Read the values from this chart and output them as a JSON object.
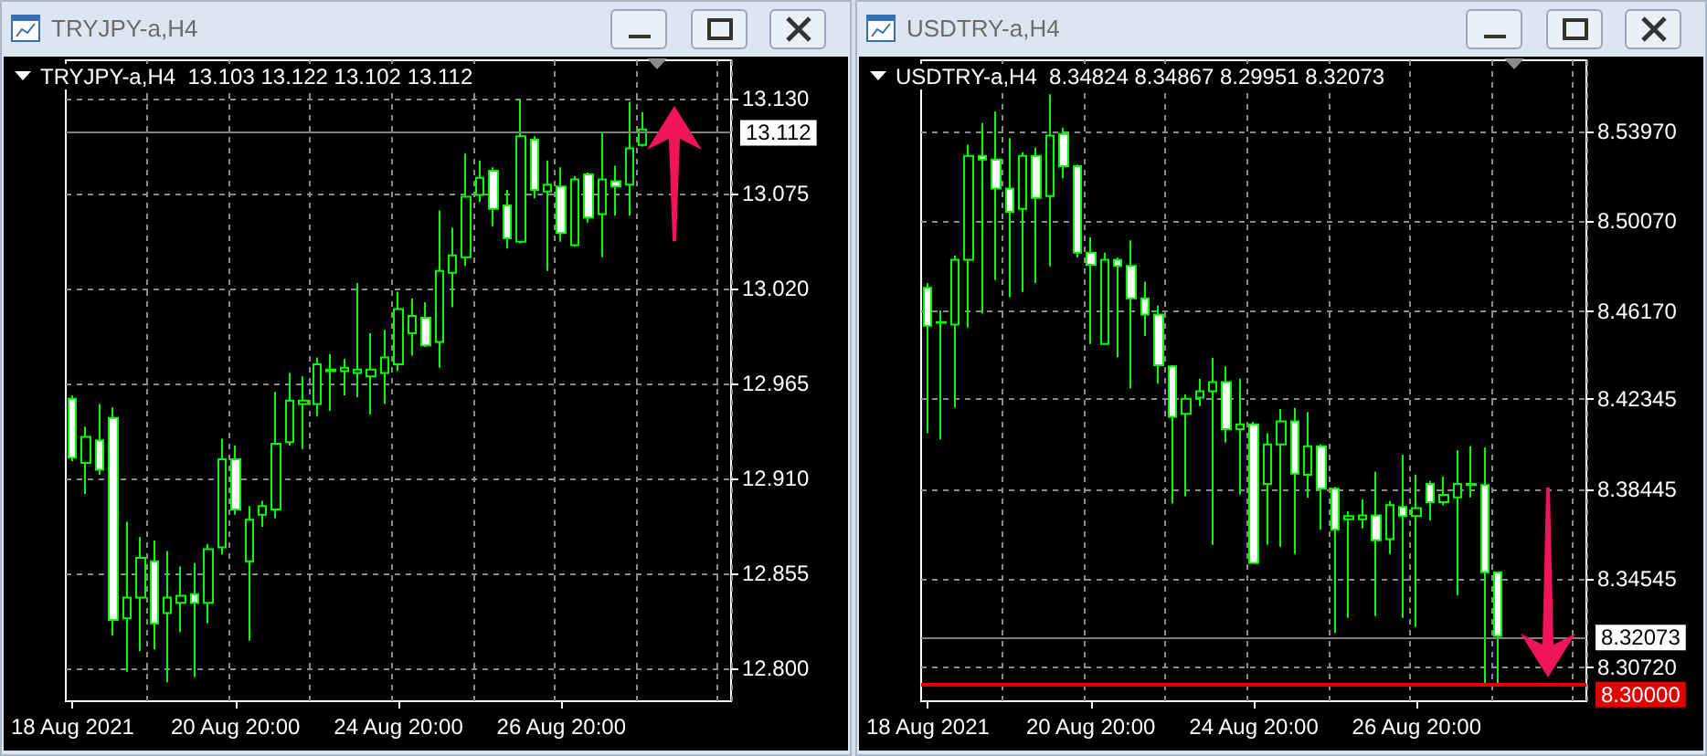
{
  "chart_data": [
    {
      "type": "candlestick",
      "title": "TRYJPY-a,H4",
      "subtitle": "TRYJPY-a,H4  13.103 13.122 13.102 13.112",
      "categories": [
        "18 Aug 2021",
        null,
        null,
        null,
        null,
        null,
        null,
        null,
        null,
        null,
        null,
        null,
        "20 Aug 20:00",
        null,
        null,
        null,
        null,
        null,
        null,
        null,
        null,
        null,
        null,
        null,
        "24 Aug 20:00",
        null,
        null,
        null,
        null,
        null,
        null,
        null,
        null,
        null,
        null,
        null,
        "26 Aug 20:00",
        null,
        null,
        null,
        null,
        null,
        null,
        null,
        null,
        null,
        null,
        null,
        null
      ],
      "ohlc": [
        [
          12.956,
          12.958,
          12.92,
          12.922
        ],
        [
          12.919,
          12.94,
          12.901,
          12.934
        ],
        [
          12.932,
          12.953,
          12.912,
          12.915
        ],
        [
          12.945,
          12.951,
          12.819,
          12.828
        ],
        [
          12.829,
          12.885,
          12.798,
          12.841
        ],
        [
          12.841,
          12.876,
          12.81,
          12.864
        ],
        [
          12.862,
          12.874,
          12.811,
          12.826
        ],
        [
          12.832,
          12.868,
          12.792,
          12.841
        ],
        [
          12.838,
          12.859,
          12.821,
          12.842
        ],
        [
          12.843,
          12.861,
          12.795,
          12.838
        ],
        [
          12.838,
          12.872,
          12.826,
          12.869
        ],
        [
          12.87,
          12.933,
          12.866,
          12.921
        ],
        [
          12.921,
          12.929,
          12.889,
          12.892
        ],
        [
          12.862,
          12.894,
          12.816,
          12.886
        ],
        [
          12.889,
          12.897,
          12.882,
          12.894
        ],
        [
          12.892,
          12.96,
          12.887,
          12.93
        ],
        [
          12.931,
          12.971,
          12.929,
          12.955
        ],
        [
          12.953,
          12.969,
          12.927,
          12.955
        ],
        [
          12.953,
          12.98,
          12.946,
          12.976
        ],
        [
          12.972,
          12.982,
          12.949,
          12.973
        ],
        [
          12.972,
          12.979,
          12.958,
          12.974
        ],
        [
          12.971,
          13.023,
          12.957,
          12.973
        ],
        [
          12.969,
          12.994,
          12.947,
          12.973
        ],
        [
          12.971,
          12.996,
          12.953,
          12.98
        ],
        [
          12.976,
          13.018,
          12.972,
          13.008
        ],
        [
          12.994,
          13.014,
          12.981,
          13.004
        ],
        [
          13.003,
          13.012,
          12.986,
          12.987
        ],
        [
          12.989,
          13.065,
          12.974,
          13.03
        ],
        [
          13.029,
          13.055,
          13.009,
          13.039
        ],
        [
          13.038,
          13.098,
          13.033,
          13.073
        ],
        [
          13.074,
          13.094,
          13.07,
          13.084
        ],
        [
          13.088,
          13.09,
          13.056,
          13.066
        ],
        [
          13.068,
          13.077,
          13.043,
          13.049
        ],
        [
          13.047,
          13.129,
          13.046,
          13.108
        ],
        [
          13.106,
          13.108,
          13.072,
          13.077
        ],
        [
          13.076,
          13.094,
          13.03,
          13.08
        ],
        [
          13.079,
          13.09,
          13.047,
          13.052
        ],
        [
          13.045,
          13.085,
          13.044,
          13.083
        ],
        [
          13.086,
          13.087,
          13.058,
          13.061
        ],
        [
          13.063,
          13.11,
          13.038,
          13.083
        ],
        [
          13.082,
          13.091,
          13.062,
          13.079
        ],
        [
          13.08,
          13.128,
          13.062,
          13.101
        ],
        [
          13.103,
          13.122,
          13.102,
          13.112
        ],
        null,
        null,
        null,
        null,
        null,
        null
      ],
      "ylim": [
        12.781,
        13.152
      ],
      "yticks": [
        {
          "value": 12.8,
          "label": "12.800"
        },
        {
          "value": 12.855,
          "label": "12.855"
        },
        {
          "value": 12.91,
          "label": "12.910"
        },
        {
          "value": 12.965,
          "label": "12.965"
        },
        {
          "value": 13.02,
          "label": "13.020"
        },
        {
          "value": 13.075,
          "label": "13.075"
        },
        {
          "value": 13.13,
          "label": "13.130"
        }
      ],
      "grid": true,
      "ref_lines": [
        {
          "axis": "y",
          "value": 13.112,
          "label": "13.112",
          "color": "#808080"
        }
      ]
    },
    {
      "type": "candlestick",
      "title": "USDTRY-a,H4",
      "subtitle": "USDTRY-a,H4  8.34824 8.34867 8.29951 8.32073",
      "categories": [
        "18 Aug 2021",
        null,
        null,
        null,
        null,
        null,
        null,
        null,
        null,
        null,
        null,
        null,
        "20 Aug 20:00",
        null,
        null,
        null,
        null,
        null,
        null,
        null,
        null,
        null,
        null,
        null,
        "24 Aug 20:00",
        null,
        null,
        null,
        null,
        null,
        null,
        null,
        null,
        null,
        null,
        null,
        "26 Aug 20:00",
        null,
        null,
        null,
        null,
        null,
        null,
        null,
        null,
        null,
        null,
        null,
        null
      ],
      "ohlc": [
        [
          8.4718,
          8.4739,
          8.4087,
          8.4554
        ],
        [
          8.4567,
          8.462,
          8.406,
          8.457
        ],
        [
          8.4559,
          8.4858,
          8.4198,
          8.484
        ],
        [
          8.484,
          8.5339,
          8.4546,
          8.5291
        ],
        [
          8.5291,
          8.5434,
          8.4607,
          8.5275
        ],
        [
          8.5275,
          8.5484,
          8.4752,
          8.5149
        ],
        [
          8.5149,
          8.5368,
          8.4678,
          8.5048
        ],
        [
          8.5061,
          8.5307,
          8.47,
          8.5291
        ],
        [
          8.5291,
          8.5328,
          8.4739,
          8.5109
        ],
        [
          8.5117,
          8.5558,
          8.4811,
          8.5379
        ],
        [
          8.5386,
          8.5413,
          8.5194,
          8.5246
        ],
        [
          8.5246,
          8.5254,
          8.485,
          8.4871
        ],
        [
          8.4871,
          8.4937,
          8.4475,
          8.4818
        ],
        [
          8.4475,
          8.4871,
          8.4475,
          8.484
        ],
        [
          8.484,
          8.485,
          8.4417,
          8.4813
        ],
        [
          8.4813,
          8.4924,
          8.4282,
          8.4673
        ],
        [
          8.4673,
          8.4744,
          8.4509,
          8.4602
        ],
        [
          8.4602,
          8.4641,
          8.4303,
          8.4382
        ],
        [
          8.4377,
          8.4382,
          8.3783,
          8.4158
        ],
        [
          8.4171,
          8.4256,
          8.3814,
          8.4237
        ],
        [
          8.4242,
          8.4324,
          8.4205,
          8.4269
        ],
        [
          8.4269,
          8.4414,
          8.3603,
          8.4309
        ],
        [
          8.4309,
          8.4377,
          8.4047,
          8.4105
        ],
        [
          8.4105,
          8.4324,
          8.3822,
          8.4126
        ],
        [
          8.4126,
          8.4137,
          8.3524,
          8.3524
        ],
        [
          8.3867,
          8.4087,
          8.3603,
          8.4039
        ],
        [
          8.4039,
          8.4192,
          8.3595,
          8.4139
        ],
        [
          8.4139,
          8.4197,
          8.3563,
          8.3912
        ],
        [
          8.3907,
          8.4179,
          8.3807,
          8.4031
        ],
        [
          8.4031,
          8.4039,
          8.3669,
          8.3846
        ],
        [
          8.3846,
          8.3854,
          8.322,
          8.3669
        ],
        [
          8.3714,
          8.3748,
          8.3286,
          8.3727
        ],
        [
          8.3714,
          8.3801,
          8.3674,
          8.373
        ],
        [
          8.373,
          8.392,
          8.3294,
          8.3622
        ],
        [
          8.3627,
          8.3793,
          8.3563,
          8.3775
        ],
        [
          8.3767,
          8.3994,
          8.3286,
          8.3727
        ],
        [
          8.3727,
          8.3907,
          8.3246,
          8.3762
        ],
        [
          8.3867,
          8.388,
          8.3709,
          8.3788
        ],
        [
          8.3788,
          8.3899,
          8.3775,
          8.382
        ],
        [
          8.3809,
          8.4013,
          8.3384,
          8.3867
        ],
        [
          8.3867,
          8.4031,
          8.3809,
          8.3862
        ],
        [
          8.3862,
          8.4026,
          8.2995,
          8.3484
        ],
        [
          8.34824,
          8.34867,
          8.29951,
          8.32073
        ],
        null,
        null,
        null,
        null,
        null,
        null
      ],
      "ylim": [
        8.2924,
        8.5706
      ],
      "yticks": [
        {
          "value": 8.3072,
          "label": "8.30720"
        },
        {
          "value": 8.34545,
          "label": "8.34545"
        },
        {
          "value": 8.38445,
          "label": "8.38445"
        },
        {
          "value": 8.42345,
          "label": "8.42345"
        },
        {
          "value": 8.4617,
          "label": "8.46170"
        },
        {
          "value": 8.5007,
          "label": "8.50070"
        },
        {
          "value": 8.5397,
          "label": "8.53970"
        }
      ],
      "grid": true,
      "ref_lines": [
        {
          "axis": "y",
          "value": 8.32073,
          "label": "8.32073",
          "color": "#808080"
        },
        {
          "axis": "y",
          "value": 8.3,
          "label": "8.30000",
          "color": "#e00000"
        }
      ]
    }
  ]
}
